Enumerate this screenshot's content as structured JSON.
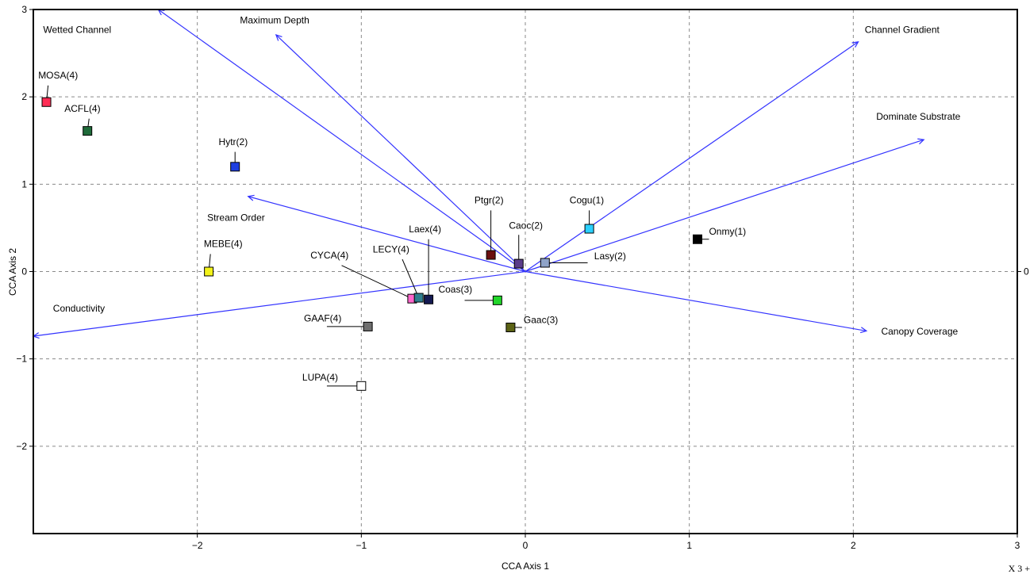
{
  "chart_data": {
    "type": "scatter",
    "title": "",
    "xlabel": "CCA Axis 1",
    "ylabel": "CCA Axis 2",
    "xlim": [
      -3,
      3
    ],
    "ylim": [
      -3,
      3
    ],
    "x_ticks": [
      -2,
      -1,
      0,
      1,
      2,
      3
    ],
    "y_ticks": [
      3,
      2,
      1,
      0,
      -1,
      -2
    ],
    "right_axis_ticks": [
      0
    ],
    "grid": true,
    "colors": {
      "vector": "#3333ff",
      "grid": "#8a8a8a",
      "frame": "#000000"
    },
    "species": [
      {
        "label": "MOSA(4)",
        "x": -2.92,
        "y": 1.94,
        "color": "#ff2d55"
      },
      {
        "label": "ACFL(4)",
        "x": -2.67,
        "y": 1.61,
        "color": "#1f6b3a"
      },
      {
        "label": "Hytr(2)",
        "x": -1.77,
        "y": 1.2,
        "color": "#1f3fe0"
      },
      {
        "label": "MEBE(4)",
        "x": -1.93,
        "y": 0.0,
        "color": "#f2f21a"
      },
      {
        "label": "CYCA(4)",
        "x": -0.69,
        "y": -0.31,
        "color": "#ff66cc"
      },
      {
        "label": "LECY(4)",
        "x": -0.65,
        "y": -0.3,
        "color": "#2f7f8f"
      },
      {
        "label": "Laex(4)",
        "x": -0.59,
        "y": -0.32,
        "color": "#141a52"
      },
      {
        "label": "Ptgr(2)",
        "x": -0.21,
        "y": 0.19,
        "color": "#6b1010"
      },
      {
        "label": "Caoc(2)",
        "x": -0.04,
        "y": 0.09,
        "color": "#5a3c8a"
      },
      {
        "label": "Cogu(1)",
        "x": 0.39,
        "y": 0.49,
        "color": "#2ad0ff"
      },
      {
        "label": "Lasy(2)",
        "x": 0.12,
        "y": 0.1,
        "color": "#8fa3c8"
      },
      {
        "label": "Onmy(1)",
        "x": 1.05,
        "y": 0.37,
        "color": "#000000"
      },
      {
        "label": "Coas(3)",
        "x": -0.17,
        "y": -0.33,
        "color": "#22d62a"
      },
      {
        "label": "Gaac(3)",
        "x": -0.09,
        "y": -0.64,
        "color": "#5b6214"
      },
      {
        "label": "GAAF(4)",
        "x": -0.96,
        "y": -0.63,
        "color": "#6e6e6e"
      },
      {
        "label": "LUPA(4)",
        "x": -1.0,
        "y": -1.31,
        "color": "#ffffff"
      }
    ],
    "vectors": [
      {
        "label": "Wetted Channel",
        "x": -2.35,
        "y": 3.15
      },
      {
        "label": "Maximum Depth",
        "x": -1.52,
        "y": 2.71
      },
      {
        "label": "Channel Gradient",
        "x": 2.03,
        "y": 2.63
      },
      {
        "label": "Dominate Substrate",
        "x": 2.43,
        "y": 1.51
      },
      {
        "label": "Stream Order",
        "x": -1.69,
        "y": 0.86
      },
      {
        "label": "Conductivity",
        "x": -3.0,
        "y": -0.74
      },
      {
        "label": "Canopy Coverage",
        "x": 2.08,
        "y": -0.68
      }
    ]
  },
  "corner_note": "X 3 +"
}
